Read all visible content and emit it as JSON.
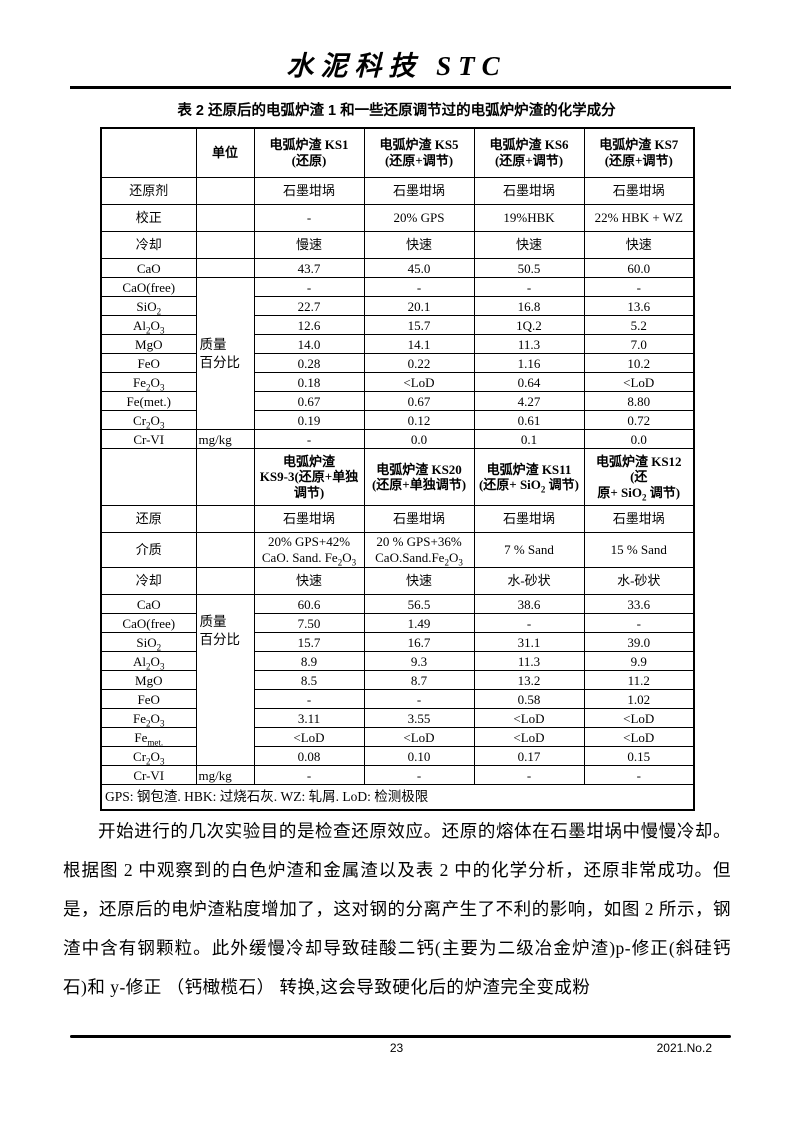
{
  "header": {
    "journal_title": "水泥科技 STC"
  },
  "table": {
    "title": "表 2  还原后的电弧炉渣 1 和一些还原调节过的电弧炉炉渣的化学成分",
    "footnote": "GPS: 钢包渣. HBK: 过烧石灰. WZ: 轧屑. LoD: 检测极限",
    "unit_column_header": "单位",
    "sections": [
      {
        "header_cells": [
          "",
          "单位",
          "电弧炉渣 KS1\n(还原)",
          "电弧炉渣 KS5\n(还原+调节)",
          "电弧炉渣 KS6\n(还原+调节)",
          "电弧炉渣 KS7\n(还原+调节)"
        ],
        "rows": [
          {
            "label": "还原剂",
            "group": "process",
            "unit": "",
            "values": [
              "石墨坩埚",
              "石墨坩埚",
              "石墨坩埚",
              "石墨坩埚"
            ]
          },
          {
            "label": "校正",
            "group": "process",
            "unit": "",
            "values": [
              "-",
              "20% GPS",
              "19%HBK",
              "22% HBK + WZ"
            ]
          },
          {
            "label": "冷却",
            "group": "process",
            "unit": "",
            "values": [
              "慢速",
              "快速",
              "快速",
              "快速"
            ]
          },
          {
            "label": "CaO",
            "group": "composition",
            "unit": "",
            "values": [
              "43.7",
              "45.0",
              "50.5",
              "60.0"
            ]
          },
          {
            "label": "CaO(free)",
            "group": "composition",
            "unit_span": {
              "text": "质量\n百分比",
              "rows": 8,
              "align": "middle"
            },
            "values": [
              "-",
              "-",
              "-",
              "-"
            ]
          },
          {
            "label": "SiO~2~",
            "group": "composition",
            "values": [
              "22.7",
              "20.1",
              "16.8",
              "13.6"
            ]
          },
          {
            "label": "Al~2~O~3~",
            "group": "composition",
            "values": [
              "12.6",
              "15.7",
              "1Q.2",
              "5.2"
            ]
          },
          {
            "label": "MgO",
            "group": "composition",
            "values": [
              "14.0",
              "14.1",
              "11.3",
              "7.0"
            ]
          },
          {
            "label": "FeO",
            "group": "composition",
            "values": [
              "0.28",
              "0.22",
              "1.16",
              "10.2"
            ]
          },
          {
            "label": "Fe~2~O~3~",
            "group": "composition",
            "values": [
              "0.18",
              "<LoD",
              "0.64",
              "<LoD"
            ]
          },
          {
            "label": "Fe(met.)",
            "group": "composition",
            "values": [
              "0.67",
              "0.67",
              "4.27",
              "8.80"
            ]
          },
          {
            "label": "Cr~2~O~3~",
            "group": "composition",
            "values": [
              "0.19",
              "0.12",
              "0.61",
              "0.72"
            ]
          },
          {
            "label": "Cr-VI",
            "group": "composition",
            "unit": "mg/kg",
            "values": [
              "-",
              "0.0",
              "0.1",
              "0.0"
            ]
          }
        ]
      },
      {
        "header_cells": [
          "",
          "",
          "电弧炉渣\nKS9-3(还原+单独\n调节)",
          "电弧炉渣 KS20\n(还原+单独调节)",
          "电弧炉渣 KS11\n(还原+ SiO~2~ 调节)",
          "电弧炉渣 KS12 (还\n原+ SiO~2~ 调节)"
        ],
        "rows": [
          {
            "label": "还原",
            "group": "process",
            "unit": "",
            "values": [
              "石墨坩埚",
              "石墨坩埚",
              "石墨坩埚",
              "石墨坩埚"
            ]
          },
          {
            "label": "介质",
            "group": "process",
            "unit": "",
            "values": [
              "20% GPS+42%\nCaO. Sand. Fe~2~O~3~",
              "20 % GPS+36%\nCaO.Sand.Fe~2~O~3~",
              "7 % Sand",
              "15 % Sand"
            ]
          },
          {
            "label": "冷却",
            "group": "process",
            "unit": "",
            "values": [
              "快速",
              "快速",
              "水-砂状",
              "水-砂状"
            ]
          },
          {
            "label": "CaO",
            "group": "composition",
            "unit_span": {
              "text": "质量\n百分比",
              "rows": 9,
              "align": "top"
            },
            "values": [
              "60.6",
              "56.5",
              "38.6",
              "33.6"
            ]
          },
          {
            "label": "CaO(free)",
            "group": "composition",
            "values": [
              "7.50",
              "1.49",
              "-",
              "-"
            ]
          },
          {
            "label": "SiO~2~",
            "group": "composition",
            "values": [
              "15.7",
              "16.7",
              "31.1",
              "39.0"
            ]
          },
          {
            "label": "Al~2~O~3~",
            "group": "composition",
            "values": [
              "8.9",
              "9.3",
              "11.3",
              "9.9"
            ]
          },
          {
            "label": "MgO",
            "group": "composition",
            "values": [
              "8.5",
              "8.7",
              "13.2",
              "11.2"
            ]
          },
          {
            "label": "FeO",
            "group": "composition",
            "values": [
              "-",
              "-",
              "0.58",
              "1.02"
            ]
          },
          {
            "label": "Fe~2~O~3~",
            "group": "composition",
            "values": [
              "3.11",
              "3.55",
              "<LoD",
              "<LoD"
            ]
          },
          {
            "label": "Fe~met.~",
            "group": "composition",
            "values": [
              "<LoD",
              "<LoD",
              "<LoD",
              "<LoD"
            ]
          },
          {
            "label": "Cr~2~O~3~",
            "group": "composition",
            "values": [
              "0.08",
              "0.10",
              "0.17",
              "0.15"
            ]
          },
          {
            "label": "Cr-VI",
            "group": "composition",
            "unit": "mg/kg",
            "values": [
              "-",
              "-",
              "-",
              "-"
            ]
          }
        ]
      }
    ]
  },
  "paragraph": {
    "text": "开始进行的几次实验目的是检查还原效应。还原的熔体在石墨坩埚中慢慢冷却。根据图 2 中观察到的白色炉渣和金属渣以及表 2 中的化学分析，还原非常成功。但是，还原后的电炉渣粘度增加了，这对钢的分离产生了不利的影响，如图 2 所示，钢渣中含有钢颗粒。此外缓慢冷却导致硅酸二钙(主要为二级冶金炉渣)p-修正(斜硅钙石)和 y-修正 （钙橄榄石） 转换,这会导致硬化后的炉渣完全变成粉"
  },
  "footer": {
    "page_number": "23",
    "issue": "2021.No.2"
  }
}
